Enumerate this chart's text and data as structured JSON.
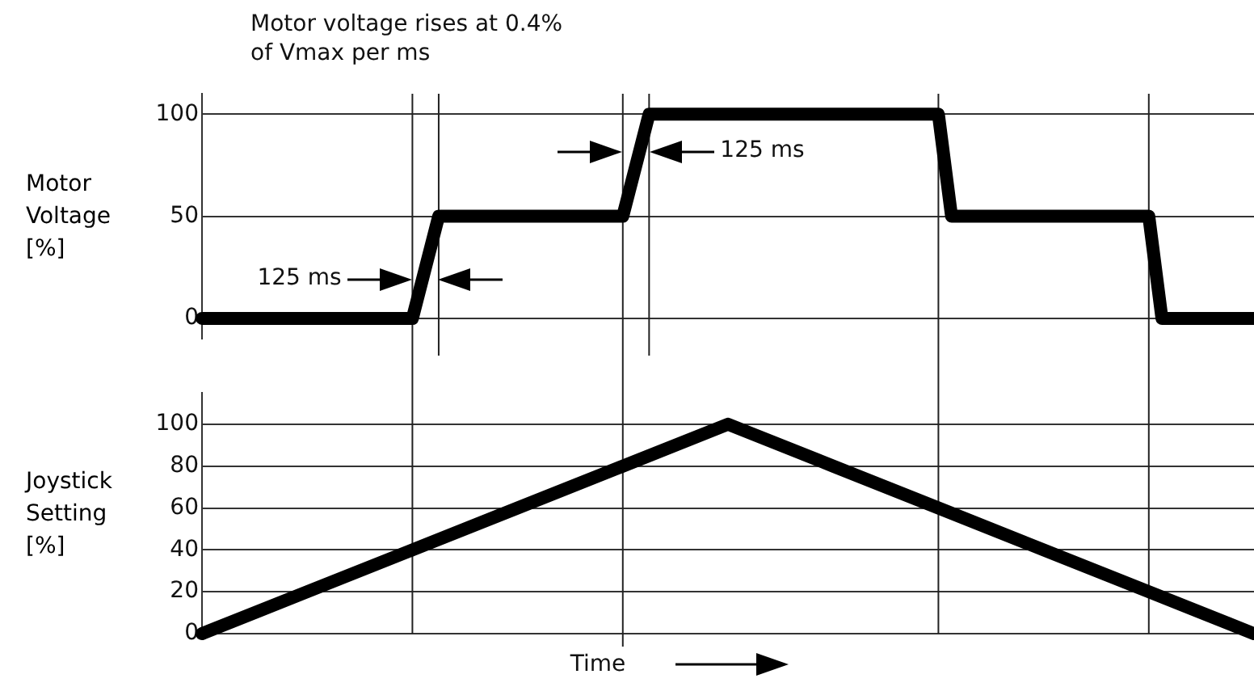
{
  "chart_data": [
    {
      "type": "line",
      "ylabel": "Motor Voltage [%]",
      "annotations": [
        "Motor voltage rises at 0.4% of Vmax per ms",
        "125 ms",
        "125 ms"
      ],
      "categories": [
        null,
        null,
        null,
        null,
        null,
        null,
        null,
        null,
        null,
        null,
        null,
        null,
        null,
        null,
        null,
        null,
        null,
        null,
        null,
        null,
        null,
        null,
        null,
        null,
        null,
        null,
        null,
        null,
        null,
        null,
        null,
        null,
        null,
        null,
        null,
        null,
        null,
        null,
        null,
        null,
        null,
        null,
        null,
        null,
        null,
        null,
        null,
        null,
        null,
        null,
        null,
        null,
        null,
        null,
        null,
        null,
        null,
        null,
        null,
        null,
        null,
        null,
        null,
        null,
        null,
        null,
        null,
        null,
        null,
        null,
        null,
        null,
        null,
        null,
        null,
        null,
        null,
        null,
        null,
        null,
        null
      ],
      "series": [
        {
          "color": "#000000",
          "values": [
            0,
            0,
            0,
            0,
            0,
            0,
            0,
            0,
            0,
            0,
            0,
            0,
            0,
            0,
            0,
            0,
            0,
            25,
            50,
            50,
            50,
            50,
            50,
            50,
            50,
            50,
            50,
            50,
            50,
            50,
            50,
            50,
            50,
            75,
            100,
            100,
            100,
            100,
            100,
            100,
            100,
            100,
            100,
            100,
            100,
            100,
            100,
            100,
            100,
            100,
            100,
            100,
            100,
            100,
            100,
            100,
            100,
            50,
            50,
            50,
            50,
            50,
            50,
            50,
            50,
            50,
            50,
            50,
            50,
            50,
            50,
            50,
            50,
            0,
            0,
            0,
            0,
            0,
            0,
            0,
            0
          ]
        }
      ],
      "ylim": [
        -10,
        110
      ],
      "yticks": [
        0,
        50,
        100
      ],
      "grid": true,
      "tick_labels": "y",
      "marker": "none",
      "line_style": "solid"
    },
    {
      "type": "line",
      "ylabel": "Joystick Setting [%]",
      "xlabel": "Time",
      "categories": [
        null,
        null,
        null,
        null,
        null,
        null,
        null,
        null,
        null,
        null,
        null
      ],
      "series": [
        {
          "color": "#000000",
          "values": [
            0,
            20,
            40,
            60,
            80,
            100,
            80,
            60,
            40,
            20,
            0
          ]
        }
      ],
      "ylim": [
        0,
        115
      ],
      "yticks": [
        0,
        20,
        40,
        60,
        80,
        100
      ],
      "grid": true,
      "tick_labels": "y",
      "marker": "none",
      "line_style": "solid"
    }
  ]
}
